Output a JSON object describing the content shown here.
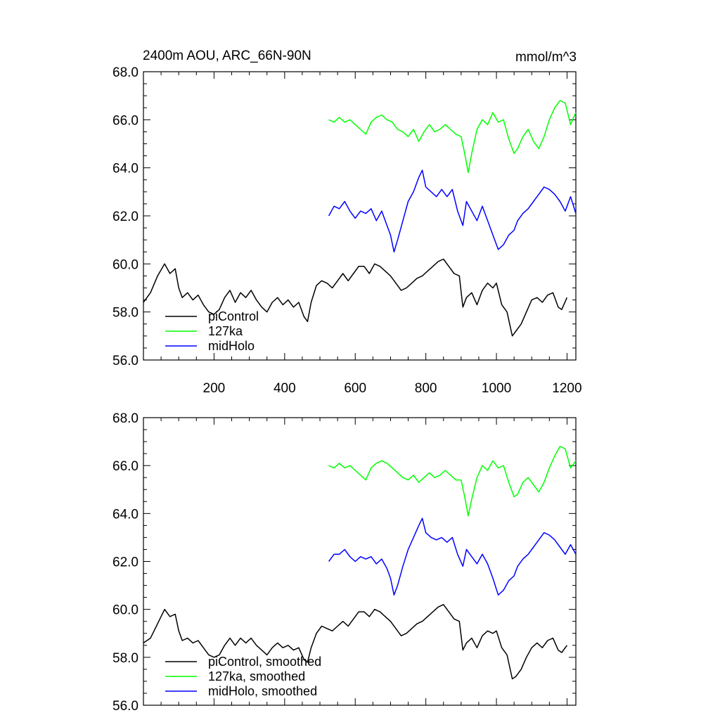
{
  "header": {
    "title": "2400m AOU, ARC_66N-90N",
    "units": "mmol/m^3"
  },
  "chart_data": [
    {
      "type": "line",
      "title": "2400m AOU, ARC_66N-90N",
      "units": "mmol/m^3",
      "xlim": [
        0,
        1225
      ],
      "ylim": [
        56.0,
        68.0
      ],
      "xticks": [
        200,
        400,
        600,
        800,
        1000,
        1200
      ],
      "xtick_labels": [
        "200",
        "400",
        "600",
        "800",
        "1000",
        "1200"
      ],
      "yticks": [
        56.0,
        58.0,
        60.0,
        62.0,
        64.0,
        66.0,
        68.0
      ],
      "ytick_labels": [
        "56.0",
        "58.0",
        "60.0",
        "62.0",
        "64.0",
        "66.0",
        "68.0"
      ],
      "grid": false,
      "legend_position": "bottom-left",
      "series": [
        {
          "name": "piControl",
          "color": "#000000",
          "x": [
            0,
            20,
            40,
            60,
            75,
            90,
            100,
            110,
            125,
            140,
            155,
            170,
            185,
            200,
            215,
            230,
            245,
            260,
            275,
            290,
            305,
            320,
            335,
            350,
            365,
            380,
            395,
            410,
            425,
            440,
            455,
            465,
            475,
            490,
            505,
            520,
            535,
            550,
            565,
            580,
            595,
            610,
            625,
            640,
            655,
            670,
            685,
            700,
            715,
            730,
            745,
            760,
            775,
            790,
            805,
            820,
            835,
            850,
            865,
            880,
            895,
            905,
            915,
            930,
            945,
            960,
            975,
            990,
            1000,
            1015,
            1030,
            1045,
            1055,
            1070,
            1085,
            1100,
            1115,
            1130,
            1145,
            1160,
            1175,
            1185,
            1200
          ],
          "y": [
            58.4,
            58.8,
            59.5,
            60.0,
            59.6,
            59.8,
            59.0,
            58.6,
            58.8,
            58.5,
            58.7,
            58.3,
            58.0,
            57.9,
            58.1,
            58.6,
            58.9,
            58.4,
            58.8,
            58.6,
            58.9,
            58.5,
            58.2,
            58.0,
            58.4,
            58.6,
            58.3,
            58.5,
            58.2,
            58.4,
            57.8,
            57.6,
            58.4,
            59.1,
            59.3,
            59.2,
            59.0,
            59.3,
            59.6,
            59.3,
            59.6,
            59.9,
            59.9,
            59.6,
            60.0,
            59.9,
            59.7,
            59.5,
            59.2,
            58.9,
            59.0,
            59.2,
            59.4,
            59.5,
            59.7,
            59.9,
            60.1,
            60.2,
            59.9,
            59.6,
            59.5,
            58.2,
            58.6,
            58.8,
            58.3,
            58.9,
            59.2,
            59.0,
            59.2,
            58.3,
            58.0,
            57.0,
            57.2,
            57.5,
            58.0,
            58.5,
            58.6,
            58.4,
            58.7,
            58.8,
            58.2,
            58.1,
            58.6
          ]
        },
        {
          "name": "127ka",
          "color": "#00ff00",
          "x": [
            525,
            540,
            555,
            570,
            585,
            600,
            615,
            630,
            645,
            660,
            675,
            690,
            705,
            720,
            735,
            750,
            765,
            780,
            795,
            810,
            825,
            840,
            855,
            870,
            885,
            900,
            910,
            920,
            930,
            945,
            960,
            975,
            990,
            1005,
            1020,
            1035,
            1050,
            1060,
            1075,
            1090,
            1105,
            1120,
            1135,
            1150,
            1165,
            1180,
            1195,
            1210,
            1225
          ],
          "y": [
            66.0,
            65.9,
            66.1,
            65.9,
            66.0,
            65.8,
            65.6,
            65.4,
            65.9,
            66.1,
            66.2,
            66.0,
            65.9,
            65.6,
            65.5,
            65.3,
            65.6,
            65.1,
            65.5,
            65.8,
            65.5,
            65.6,
            65.8,
            65.6,
            65.4,
            65.3,
            64.6,
            63.8,
            64.6,
            65.6,
            66.0,
            65.8,
            66.3,
            65.9,
            66.0,
            65.2,
            64.6,
            64.8,
            65.3,
            65.6,
            65.1,
            64.8,
            65.3,
            66.0,
            66.5,
            66.8,
            66.7,
            65.8,
            66.3
          ]
        },
        {
          "name": "midHolo",
          "color": "#0000ff",
          "x": [
            525,
            540,
            555,
            570,
            585,
            600,
            615,
            630,
            645,
            660,
            675,
            690,
            700,
            710,
            720,
            735,
            750,
            765,
            780,
            790,
            800,
            815,
            830,
            845,
            860,
            875,
            890,
            905,
            915,
            930,
            945,
            960,
            975,
            990,
            1005,
            1020,
            1035,
            1050,
            1060,
            1075,
            1090,
            1105,
            1120,
            1135,
            1150,
            1165,
            1180,
            1195,
            1210,
            1225
          ],
          "y": [
            62.0,
            62.4,
            62.3,
            62.6,
            62.2,
            61.9,
            62.2,
            62.1,
            62.3,
            61.8,
            62.2,
            61.6,
            61.2,
            60.5,
            61.0,
            61.8,
            62.6,
            63.0,
            63.6,
            63.9,
            63.2,
            63.0,
            62.8,
            63.1,
            62.8,
            63.1,
            62.2,
            61.6,
            62.6,
            62.2,
            61.8,
            62.4,
            61.8,
            61.2,
            60.6,
            60.8,
            61.2,
            61.4,
            61.8,
            62.1,
            62.3,
            62.6,
            62.9,
            63.2,
            63.1,
            62.9,
            62.6,
            62.2,
            62.8,
            62.1
          ]
        }
      ]
    },
    {
      "type": "line",
      "title": "",
      "xlim": [
        0,
        1225
      ],
      "ylim": [
        56.0,
        68.0
      ],
      "xticks": [
        200,
        400,
        600,
        800,
        1000,
        1200
      ],
      "yticks": [
        56.0,
        58.0,
        60.0,
        62.0,
        64.0,
        66.0,
        68.0
      ],
      "ytick_labels": [
        "56.0",
        "58.0",
        "60.0",
        "62.0",
        "64.0",
        "66.0",
        "68.0"
      ],
      "grid": false,
      "legend_position": "bottom-left",
      "series": [
        {
          "name": "piControl, smoothed",
          "color": "#000000",
          "x": [
            0,
            20,
            40,
            60,
            75,
            90,
            100,
            110,
            125,
            140,
            155,
            170,
            185,
            200,
            215,
            230,
            245,
            260,
            275,
            290,
            305,
            320,
            335,
            350,
            365,
            380,
            395,
            410,
            425,
            440,
            455,
            465,
            475,
            490,
            505,
            520,
            535,
            550,
            565,
            580,
            595,
            610,
            625,
            640,
            655,
            670,
            685,
            700,
            715,
            730,
            745,
            760,
            775,
            790,
            805,
            820,
            835,
            850,
            865,
            880,
            895,
            905,
            915,
            930,
            945,
            960,
            975,
            990,
            1000,
            1015,
            1030,
            1045,
            1055,
            1070,
            1085,
            1100,
            1115,
            1130,
            1145,
            1160,
            1175,
            1185,
            1200
          ],
          "y": [
            58.6,
            58.8,
            59.4,
            60.0,
            59.7,
            59.8,
            59.1,
            58.7,
            58.8,
            58.6,
            58.7,
            58.4,
            58.1,
            58.0,
            58.1,
            58.5,
            58.8,
            58.5,
            58.8,
            58.6,
            58.8,
            58.5,
            58.3,
            58.1,
            58.4,
            58.6,
            58.4,
            58.5,
            58.3,
            58.4,
            57.9,
            57.8,
            58.4,
            59.0,
            59.3,
            59.2,
            59.1,
            59.3,
            59.5,
            59.3,
            59.6,
            59.9,
            59.9,
            59.7,
            60.0,
            59.9,
            59.7,
            59.5,
            59.2,
            58.9,
            59.0,
            59.2,
            59.4,
            59.5,
            59.7,
            59.9,
            60.1,
            60.2,
            59.9,
            59.6,
            59.5,
            58.3,
            58.6,
            58.8,
            58.4,
            58.9,
            59.1,
            59.0,
            59.1,
            58.4,
            58.1,
            57.1,
            57.2,
            57.5,
            58.0,
            58.4,
            58.6,
            58.4,
            58.7,
            58.8,
            58.3,
            58.2,
            58.5
          ]
        },
        {
          "name": "127ka, smoothed",
          "color": "#00ff00",
          "x": [
            525,
            540,
            555,
            570,
            585,
            600,
            615,
            630,
            645,
            660,
            675,
            690,
            705,
            720,
            735,
            750,
            765,
            780,
            795,
            810,
            825,
            840,
            855,
            870,
            885,
            900,
            910,
            920,
            930,
            945,
            960,
            975,
            990,
            1005,
            1020,
            1035,
            1050,
            1060,
            1075,
            1090,
            1105,
            1120,
            1135,
            1150,
            1165,
            1180,
            1195,
            1210,
            1225
          ],
          "y": [
            66.0,
            65.9,
            66.1,
            65.9,
            66.0,
            65.8,
            65.6,
            65.4,
            65.9,
            66.1,
            66.2,
            66.1,
            65.9,
            65.7,
            65.5,
            65.4,
            65.6,
            65.3,
            65.5,
            65.7,
            65.5,
            65.6,
            65.8,
            65.6,
            65.4,
            65.4,
            64.7,
            63.9,
            64.6,
            65.5,
            66.0,
            65.8,
            66.2,
            65.9,
            66.0,
            65.3,
            64.7,
            64.8,
            65.3,
            65.5,
            65.2,
            64.9,
            65.3,
            65.9,
            66.4,
            66.8,
            66.7,
            65.9,
            66.2
          ]
        },
        {
          "name": "midHolo, smoothed",
          "color": "#0000ff",
          "x": [
            525,
            540,
            555,
            570,
            585,
            600,
            615,
            630,
            645,
            660,
            675,
            690,
            700,
            710,
            720,
            735,
            750,
            765,
            780,
            790,
            800,
            815,
            830,
            845,
            860,
            875,
            890,
            905,
            915,
            930,
            945,
            960,
            975,
            990,
            1005,
            1020,
            1035,
            1050,
            1060,
            1075,
            1090,
            1105,
            1120,
            1135,
            1150,
            1165,
            1180,
            1195,
            1210,
            1225
          ],
          "y": [
            62.0,
            62.3,
            62.3,
            62.5,
            62.2,
            62.0,
            62.2,
            62.1,
            62.2,
            61.9,
            62.1,
            61.7,
            61.3,
            60.6,
            61.0,
            61.8,
            62.5,
            63.0,
            63.5,
            63.8,
            63.2,
            63.0,
            62.9,
            63.0,
            62.8,
            63.0,
            62.3,
            61.8,
            62.5,
            62.2,
            61.9,
            62.3,
            61.9,
            61.3,
            60.6,
            60.8,
            61.2,
            61.4,
            61.8,
            62.1,
            62.3,
            62.6,
            62.9,
            63.2,
            63.1,
            62.9,
            62.6,
            62.3,
            62.7,
            62.3
          ]
        }
      ]
    }
  ]
}
